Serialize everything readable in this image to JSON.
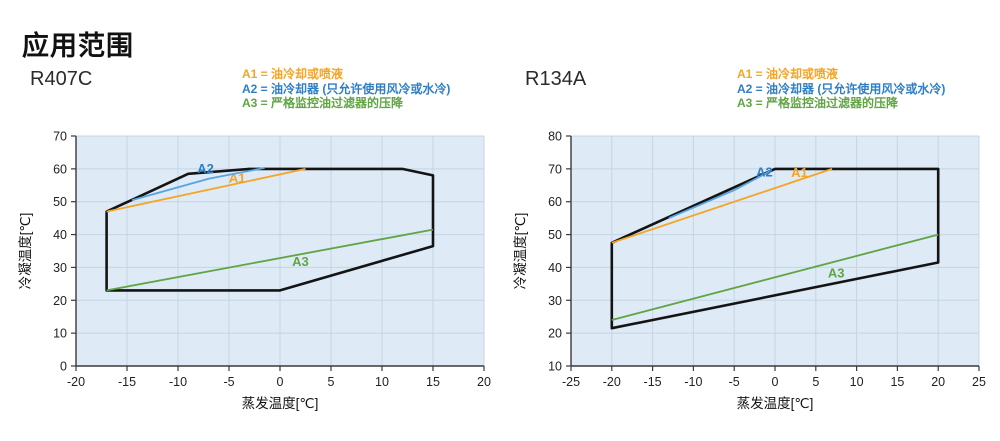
{
  "page": {
    "title": "应用范围"
  },
  "colors": {
    "a1": "#F5A423",
    "a2": "#2E7FC6",
    "a2_line": "#55A4E0",
    "a3": "#5FA544",
    "envelope": "#141414",
    "plot_bg": "#DEEAF5",
    "grid": "#C4D5E4",
    "axis": "#3a3a3a"
  },
  "legend": {
    "a1": "A1 = 油冷却或喷液",
    "a2": "A2 = 油冷却器 (只允许使用风冷或水冷)",
    "a3": "A3 = 严格监控油过滤器的压降"
  },
  "chart_data": [
    {
      "type": "area",
      "title": "R407C",
      "xlabel": "蒸发温度[℃]",
      "ylabel": "冷凝温度[℃]",
      "xlim": [
        -20,
        20
      ],
      "ylim": [
        0,
        70
      ],
      "xticks": [
        -20,
        -15,
        -10,
        -5,
        0,
        5,
        10,
        15,
        20
      ],
      "yticks": [
        0,
        10,
        20,
        30,
        40,
        50,
        60,
        70
      ],
      "grid": true,
      "envelope": [
        [
          -17,
          23
        ],
        [
          -17,
          47
        ],
        [
          -9,
          58.5
        ],
        [
          -3,
          60
        ],
        [
          12,
          60
        ],
        [
          15,
          58
        ],
        [
          15,
          36.5
        ],
        [
          0,
          23
        ]
      ],
      "series": [
        {
          "name": "A1",
          "color_key": "a1",
          "points": [
            [
              -17,
              47
            ],
            [
              2.5,
              60
            ]
          ],
          "label_pos": [
            -4.2,
            55.8
          ]
        },
        {
          "name": "A2",
          "color_key": "a2_line",
          "label_color_key": "a2",
          "points": [
            [
              -14.5,
              50.5
            ],
            [
              -7,
              57
            ],
            [
              -1.5,
              60.3
            ]
          ],
          "label_pos": [
            -7.3,
            58.8
          ]
        },
        {
          "name": "A3",
          "color_key": "a3",
          "points": [
            [
              -17,
              23
            ],
            [
              15,
              41.5
            ]
          ],
          "label_pos": [
            2,
            30.5
          ]
        }
      ]
    },
    {
      "type": "area",
      "title": "R134A",
      "xlabel": "蒸发温度[℃]",
      "ylabel": "冷凝温度[℃]",
      "xlim": [
        -25,
        25
      ],
      "ylim": [
        10,
        80
      ],
      "xticks": [
        -25,
        -20,
        -15,
        -10,
        -5,
        0,
        5,
        10,
        15,
        20,
        25
      ],
      "yticks": [
        10,
        20,
        30,
        40,
        50,
        60,
        70,
        80
      ],
      "grid": true,
      "envelope": [
        [
          -20,
          21.5
        ],
        [
          -20,
          47.5
        ],
        [
          0,
          70
        ],
        [
          20,
          70
        ],
        [
          20,
          41.5
        ]
      ],
      "series": [
        {
          "name": "A1",
          "color_key": "a1",
          "points": [
            [
              -20,
              47.5
            ],
            [
              7,
              70
            ]
          ],
          "label_pos": [
            3,
            67.5
          ]
        },
        {
          "name": "A2",
          "color_key": "a2_line",
          "label_color_key": "a2",
          "points": [
            [
              -13,
              55
            ],
            [
              -5,
              63.5
            ],
            [
              -0.4,
              69.6
            ]
          ],
          "label_pos": [
            -1.3,
            67.6
          ]
        },
        {
          "name": "A3",
          "color_key": "a3",
          "points": [
            [
              -20,
              24
            ],
            [
              20,
              50
            ]
          ],
          "label_pos": [
            7.5,
            37
          ]
        }
      ]
    }
  ]
}
